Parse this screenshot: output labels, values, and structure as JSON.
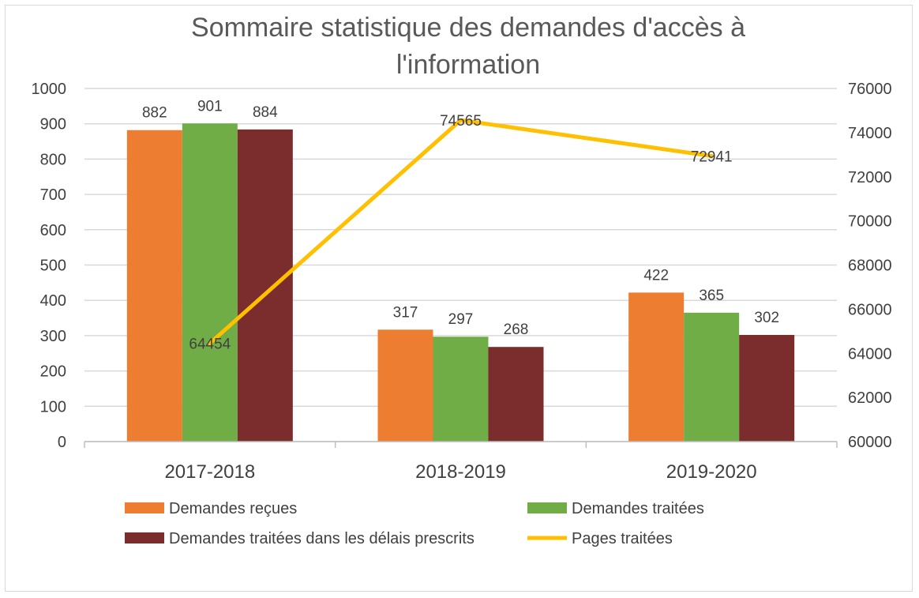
{
  "chart_data": {
    "type": "bar",
    "title_lines": [
      "Sommaire statistique des demandes d'accès à",
      "l'information"
    ],
    "categories": [
      "2017-2018",
      "2018-2019",
      "2019-2020"
    ],
    "series": [
      {
        "name": "Demandes reçues",
        "type": "bar",
        "axis": "left",
        "color": "#ED7D31",
        "values": [
          882,
          317,
          422
        ]
      },
      {
        "name": "Demandes traitées",
        "type": "bar",
        "axis": "left",
        "color": "#70AD47",
        "values": [
          901,
          297,
          365
        ]
      },
      {
        "name": "Demandes traitées dans les délais prescrits",
        "type": "bar",
        "axis": "left",
        "color": "#7B2C2C",
        "values": [
          884,
          268,
          302
        ]
      },
      {
        "name": "Pages traitées",
        "type": "line",
        "axis": "right",
        "color": "#FFC000",
        "values": [
          64454,
          74565,
          72941
        ]
      }
    ],
    "left_axis": {
      "min": 0,
      "max": 1000,
      "step": 100,
      "ticks": [
        "0",
        "100",
        "200",
        "300",
        "400",
        "500",
        "600",
        "700",
        "800",
        "900",
        "1000"
      ]
    },
    "right_axis": {
      "min": 60000,
      "max": 76000,
      "step": 2000,
      "ticks": [
        "60000",
        "62000",
        "64000",
        "66000",
        "68000",
        "70000",
        "72000",
        "74000",
        "76000"
      ]
    },
    "grid": true,
    "legend_position": "bottom"
  }
}
